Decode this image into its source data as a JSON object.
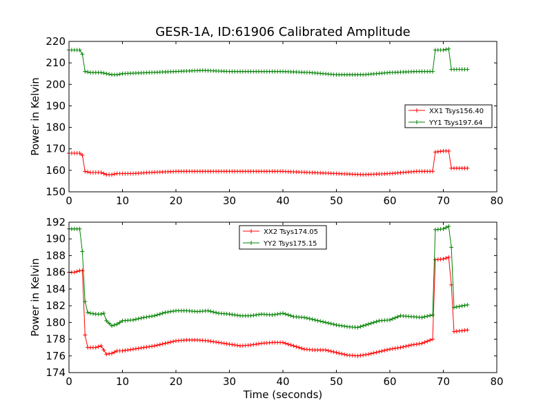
{
  "chart_data": [
    {
      "type": "line",
      "title": "GESR-1A, ID:61906 Calibrated Amplitude",
      "xlabel": "",
      "ylabel": "Power in Kelvin",
      "xlim": [
        0,
        80
      ],
      "ylim": [
        150,
        220
      ],
      "xticks": [
        "0",
        "10",
        "20",
        "30",
        "40",
        "50",
        "60",
        "70",
        "80"
      ],
      "yticks": [
        "150",
        "160",
        "170",
        "180",
        "190",
        "200",
        "210",
        "220"
      ],
      "legend_position": "center-right",
      "series": [
        {
          "name": "XX1 Tsys156.40",
          "color": "#ff0000",
          "points": [
            [
              0,
              168
            ],
            [
              2,
              168
            ],
            [
              2.5,
              167
            ],
            [
              3,
              159.5
            ],
            [
              4,
              159
            ],
            [
              5,
              159
            ],
            [
              6,
              159
            ],
            [
              7,
              158
            ],
            [
              8,
              158
            ],
            [
              9,
              158.5
            ],
            [
              10,
              158.5
            ],
            [
              12,
              158.5
            ],
            [
              15,
              159
            ],
            [
              20,
              159.5
            ],
            [
              25,
              159.5
            ],
            [
              30,
              159.5
            ],
            [
              35,
              159.5
            ],
            [
              40,
              159.5
            ],
            [
              45,
              159
            ],
            [
              50,
              158.5
            ],
            [
              55,
              158
            ],
            [
              60,
              158.5
            ],
            [
              65,
              159.5
            ],
            [
              68,
              159.5
            ],
            [
              68.5,
              168.5
            ],
            [
              70,
              169
            ],
            [
              71,
              169
            ],
            [
              71.5,
              161
            ],
            [
              74.5,
              161
            ]
          ]
        },
        {
          "name": "YY1 Tsys197.64",
          "color": "#008000",
          "points": [
            [
              0,
              216
            ],
            [
              2,
              216
            ],
            [
              2.5,
              214
            ],
            [
              3,
              206
            ],
            [
              4,
              205.5
            ],
            [
              6,
              205.5
            ],
            [
              7,
              205
            ],
            [
              8,
              204.5
            ],
            [
              9,
              204.5
            ],
            [
              10,
              205
            ],
            [
              15,
              205.5
            ],
            [
              20,
              206
            ],
            [
              25,
              206.5
            ],
            [
              30,
              206
            ],
            [
              35,
              206
            ],
            [
              40,
              206
            ],
            [
              45,
              205.5
            ],
            [
              50,
              204.5
            ],
            [
              55,
              204.5
            ],
            [
              60,
              205.5
            ],
            [
              65,
              206
            ],
            [
              68,
              206
            ],
            [
              68.5,
              216
            ],
            [
              70,
              216
            ],
            [
              71,
              216.5
            ],
            [
              71.5,
              207
            ],
            [
              74.5,
              207
            ]
          ]
        }
      ]
    },
    {
      "type": "line",
      "title": "",
      "xlabel": "Time (seconds)",
      "ylabel": "Power in Kelvin",
      "xlim": [
        0,
        80
      ],
      "ylim": [
        174,
        192
      ],
      "xticks": [
        "0",
        "10",
        "20",
        "30",
        "40",
        "50",
        "60",
        "70",
        "80"
      ],
      "yticks": [
        "174",
        "176",
        "178",
        "180",
        "182",
        "184",
        "186",
        "188",
        "190",
        "192"
      ],
      "legend_position": "top-center",
      "series": [
        {
          "name": "XX2 Tsys174.05",
          "color": "#ff0000",
          "points": [
            [
              0,
              186
            ],
            [
              1,
              186
            ],
            [
              2,
              186.2
            ],
            [
              2.5,
              186.2
            ],
            [
              3,
              178.5
            ],
            [
              3.5,
              177
            ],
            [
              4,
              177
            ],
            [
              5,
              177
            ],
            [
              6,
              177.2
            ],
            [
              7,
              176.2
            ],
            [
              8,
              176.3
            ],
            [
              9,
              176.6
            ],
            [
              10,
              176.6
            ],
            [
              12,
              176.8
            ],
            [
              14,
              177
            ],
            [
              16,
              177.2
            ],
            [
              18,
              177.5
            ],
            [
              20,
              177.8
            ],
            [
              22,
              177.9
            ],
            [
              24,
              177.9
            ],
            [
              26,
              177.8
            ],
            [
              28,
              177.6
            ],
            [
              30,
              177.4
            ],
            [
              32,
              177.2
            ],
            [
              34,
              177.3
            ],
            [
              36,
              177.5
            ],
            [
              38,
              177.6
            ],
            [
              40,
              177.6
            ],
            [
              42,
              177.2
            ],
            [
              44,
              176.8
            ],
            [
              46,
              176.7
            ],
            [
              48,
              176.7
            ],
            [
              50,
              176.4
            ],
            [
              52,
              176.1
            ],
            [
              54,
              176
            ],
            [
              56,
              176.2
            ],
            [
              58,
              176.5
            ],
            [
              60,
              176.8
            ],
            [
              62,
              177
            ],
            [
              64,
              177.3
            ],
            [
              66,
              177.5
            ],
            [
              68,
              178
            ],
            [
              68.5,
              187.5
            ],
            [
              70,
              187.6
            ],
            [
              71,
              187.8
            ],
            [
              71.5,
              184.5
            ],
            [
              72,
              178.9
            ],
            [
              74.5,
              179.1
            ]
          ]
        },
        {
          "name": "YY2 Tsys175.15",
          "color": "#008000",
          "points": [
            [
              0,
              191.2
            ],
            [
              1,
              191.2
            ],
            [
              2,
              191.2
            ],
            [
              2.5,
              188.5
            ],
            [
              3,
              182.5
            ],
            [
              3.5,
              181.2
            ],
            [
              4,
              181.1
            ],
            [
              5,
              181
            ],
            [
              6,
              181
            ],
            [
              6.5,
              181.1
            ],
            [
              7,
              180.2
            ],
            [
              8,
              179.6
            ],
            [
              9,
              179.8
            ],
            [
              10,
              180.2
            ],
            [
              12,
              180.3
            ],
            [
              14,
              180.6
            ],
            [
              16,
              180.8
            ],
            [
              18,
              181.2
            ],
            [
              20,
              181.4
            ],
            [
              22,
              181.4
            ],
            [
              24,
              181.3
            ],
            [
              26,
              181.4
            ],
            [
              28,
              181.1
            ],
            [
              30,
              181
            ],
            [
              32,
              180.8
            ],
            [
              34,
              180.8
            ],
            [
              36,
              181
            ],
            [
              38,
              180.9
            ],
            [
              40,
              181.1
            ],
            [
              42,
              180.7
            ],
            [
              44,
              180.6
            ],
            [
              46,
              180.3
            ],
            [
              48,
              180
            ],
            [
              50,
              179.7
            ],
            [
              52,
              179.5
            ],
            [
              54,
              179.4
            ],
            [
              56,
              179.8
            ],
            [
              58,
              180.2
            ],
            [
              60,
              180.3
            ],
            [
              62,
              180.8
            ],
            [
              64,
              180.7
            ],
            [
              66,
              180.6
            ],
            [
              68,
              180.9
            ],
            [
              68.5,
              191.1
            ],
            [
              70,
              191.2
            ],
            [
              71,
              191.5
            ],
            [
              71.5,
              189
            ],
            [
              72,
              181.8
            ],
            [
              74.5,
              182.1
            ]
          ]
        }
      ]
    }
  ]
}
